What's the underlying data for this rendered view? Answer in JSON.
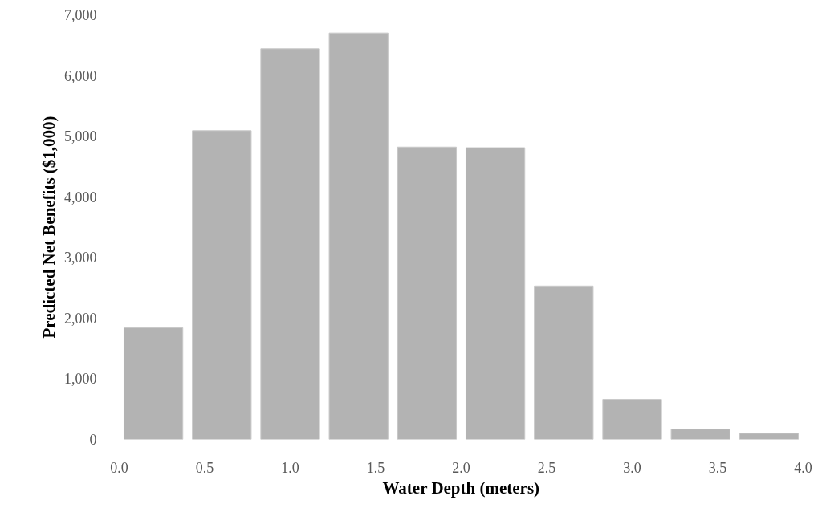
{
  "chart_data": {
    "type": "histogram",
    "xlabel": "Water Depth (meters)",
    "ylabel": "Predicted Net Benefits ($1,000)",
    "bins": [
      0,
      0.4,
      0.8,
      1.2,
      1.6,
      2.0,
      2.4,
      2.8,
      3.2,
      3.6,
      4.0
    ],
    "values": [
      1840,
      5090,
      6440,
      6700,
      4820,
      4810,
      2530,
      660,
      170,
      100
    ],
    "color": "#b3b3b3",
    "xlim": [
      0,
      4.0
    ],
    "ylim": [
      0,
      7000
    ],
    "xticks": [
      {
        "value": 0,
        "label": "0.0"
      },
      0.5,
      {
        "value": 1,
        "label": "1.0"
      },
      1.5,
      {
        "value": 2,
        "label": "2.0"
      },
      2.5,
      {
        "value": 3,
        "label": "3.0"
      },
      3.5,
      {
        "value": 4,
        "label": "4.0"
      }
    ],
    "yticks": [
      0,
      {
        "value": 1000,
        "label": "1,000"
      },
      {
        "value": 2000,
        "label": "2,000"
      },
      {
        "value": 3000,
        "label": "3,000"
      },
      {
        "value": 4000,
        "label": "4,000"
      },
      {
        "value": 5000,
        "label": "5,000"
      },
      {
        "value": 6000,
        "label": "6,000"
      },
      {
        "value": 7000,
        "label": "7,000"
      }
    ],
    "grid": false
  }
}
